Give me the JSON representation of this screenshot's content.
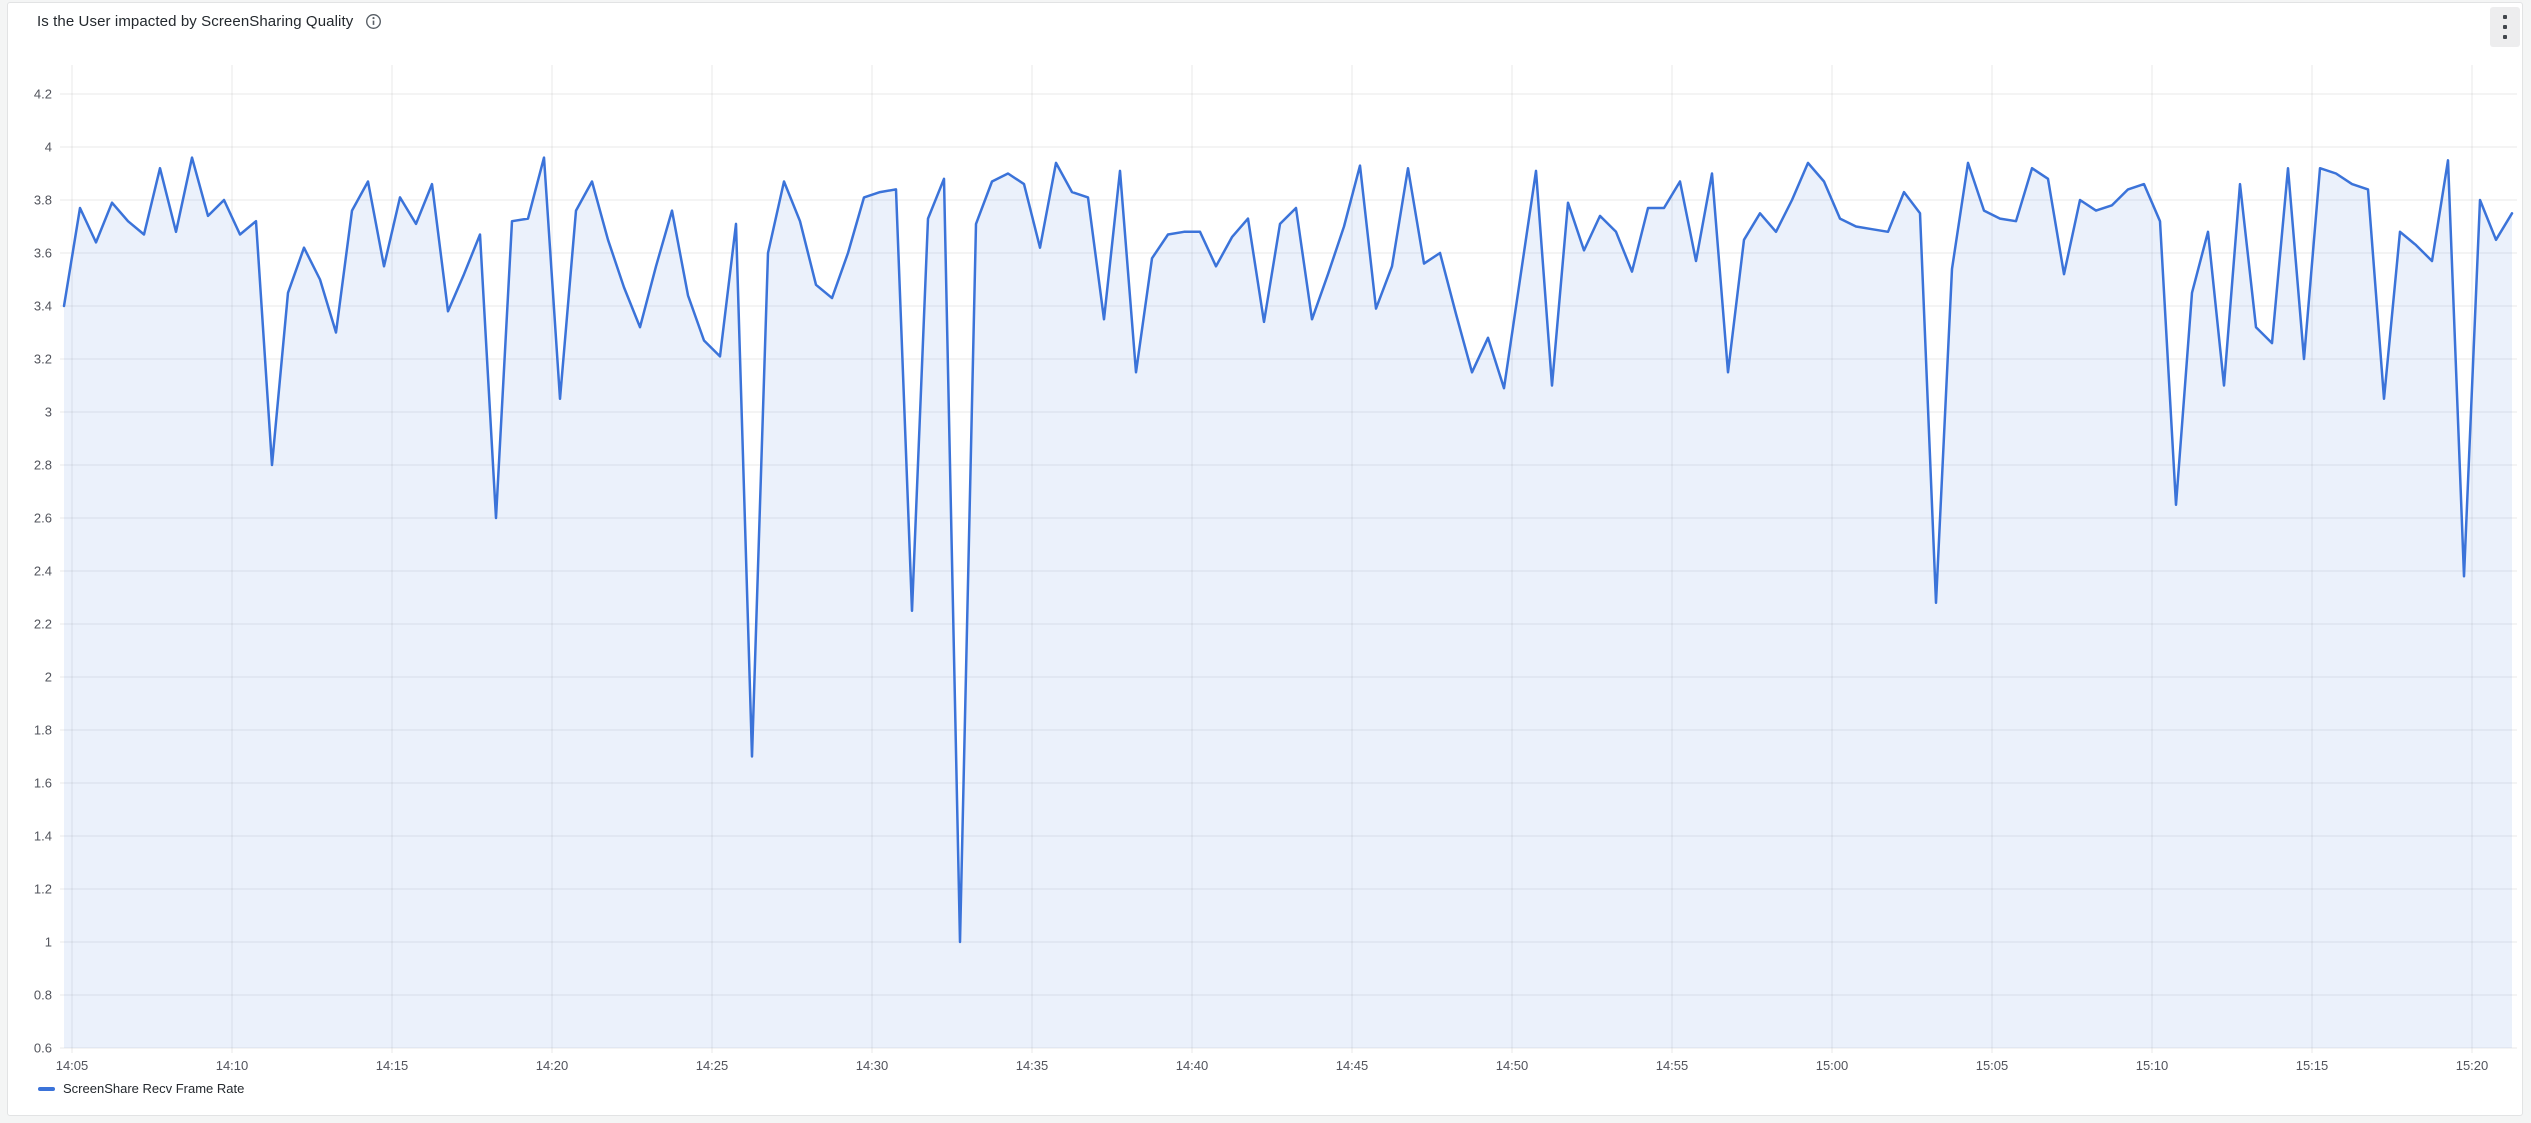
{
  "panel": {
    "title": "Is the User impacted by ScreenSharing Quality",
    "info_icon": "info-circle",
    "menu_icon": "kebab-menu"
  },
  "legend": {
    "position": "bottom-left",
    "label": "ScreenShare Recv Frame Rate"
  },
  "chart_data": {
    "type": "line",
    "title": "Is the User impacted by ScreenSharing Quality",
    "xlabel": "",
    "ylabel": "",
    "grid": true,
    "area_fill_under_line": true,
    "x_axis": {
      "kind": "time",
      "tick_labels": [
        "14:05",
        "14:10",
        "14:15",
        "14:20",
        "14:25",
        "14:30",
        "14:35",
        "14:40",
        "14:45",
        "14:50",
        "14:55",
        "15:00",
        "15:05",
        "15:10",
        "15:15",
        "15:20"
      ],
      "tick_step_minutes": 5
    },
    "y_axis": {
      "min": 0.6,
      "max": 4.2,
      "step": 0.2,
      "tick_labels": [
        "4.2",
        "4",
        "3.8",
        "3.6",
        "3.4",
        "3.2",
        "3",
        "2.8",
        "2.6",
        "2.4",
        "2.2",
        "2",
        "1.8",
        "1.6",
        "1.4",
        "1.2",
        "1",
        "0.8",
        "0.6"
      ]
    },
    "legend": {
      "position": "bottom",
      "entries": [
        "ScreenShare Recv Frame Rate"
      ]
    },
    "series": [
      {
        "name": "ScreenShare Recv Frame Rate",
        "color": "#3b73d9",
        "x_start_minutes_after_14h": 4.75,
        "x_step_minutes": 0.5,
        "values": [
          3.4,
          3.77,
          3.64,
          3.79,
          3.72,
          3.67,
          3.92,
          3.68,
          3.96,
          3.74,
          3.8,
          3.67,
          3.72,
          2.8,
          3.45,
          3.62,
          3.5,
          3.3,
          3.76,
          3.87,
          3.55,
          3.81,
          3.71,
          3.86,
          3.38,
          3.52,
          3.67,
          2.6,
          3.72,
          3.73,
          3.96,
          3.05,
          3.76,
          3.87,
          3.65,
          3.47,
          3.32,
          3.55,
          3.76,
          3.44,
          3.27,
          3.21,
          3.71,
          1.7,
          3.6,
          3.87,
          3.72,
          3.48,
          3.43,
          3.6,
          3.81,
          3.83,
          3.84,
          2.25,
          3.73,
          3.88,
          1.0,
          3.71,
          3.87,
          3.9,
          3.86,
          3.62,
          3.94,
          3.83,
          3.81,
          3.35,
          3.91,
          3.15,
          3.58,
          3.67,
          3.68,
          3.68,
          3.55,
          3.66,
          3.73,
          3.34,
          3.71,
          3.77,
          3.35,
          3.52,
          3.7,
          3.93,
          3.39,
          3.55,
          3.92,
          3.56,
          3.6,
          3.37,
          3.15,
          3.28,
          3.09,
          3.5,
          3.91,
          3.1,
          3.79,
          3.61,
          3.74,
          3.68,
          3.53,
          3.77,
          3.77,
          3.87,
          3.57,
          3.9,
          3.15,
          3.65,
          3.75,
          3.68,
          3.8,
          3.94,
          3.87,
          3.73,
          3.7,
          3.69,
          3.68,
          3.83,
          3.75,
          2.28,
          3.54,
          3.94,
          3.76,
          3.73,
          3.72,
          3.92,
          3.88,
          3.52,
          3.8,
          3.76,
          3.78,
          3.84,
          3.86,
          3.72,
          2.65,
          3.45,
          3.68,
          3.1,
          3.86,
          3.32,
          3.26,
          3.92,
          3.2,
          3.92,
          3.9,
          3.86,
          3.84,
          3.05,
          3.68,
          3.63,
          3.57,
          3.95,
          2.38,
          3.8,
          3.65,
          3.75
        ]
      }
    ]
  },
  "colors": {
    "page_bg": "#f4f5f5",
    "panel_bg": "#ffffff",
    "panel_border": "#e2e3e4",
    "grid_color": "rgba(36,41,46,0.10)",
    "axis_text": "#52545c",
    "title_text": "#24292e",
    "legend_text": "#24292e",
    "accent_line": "#3b73d9",
    "area_fill": "rgba(59,115,217,0.10)"
  }
}
